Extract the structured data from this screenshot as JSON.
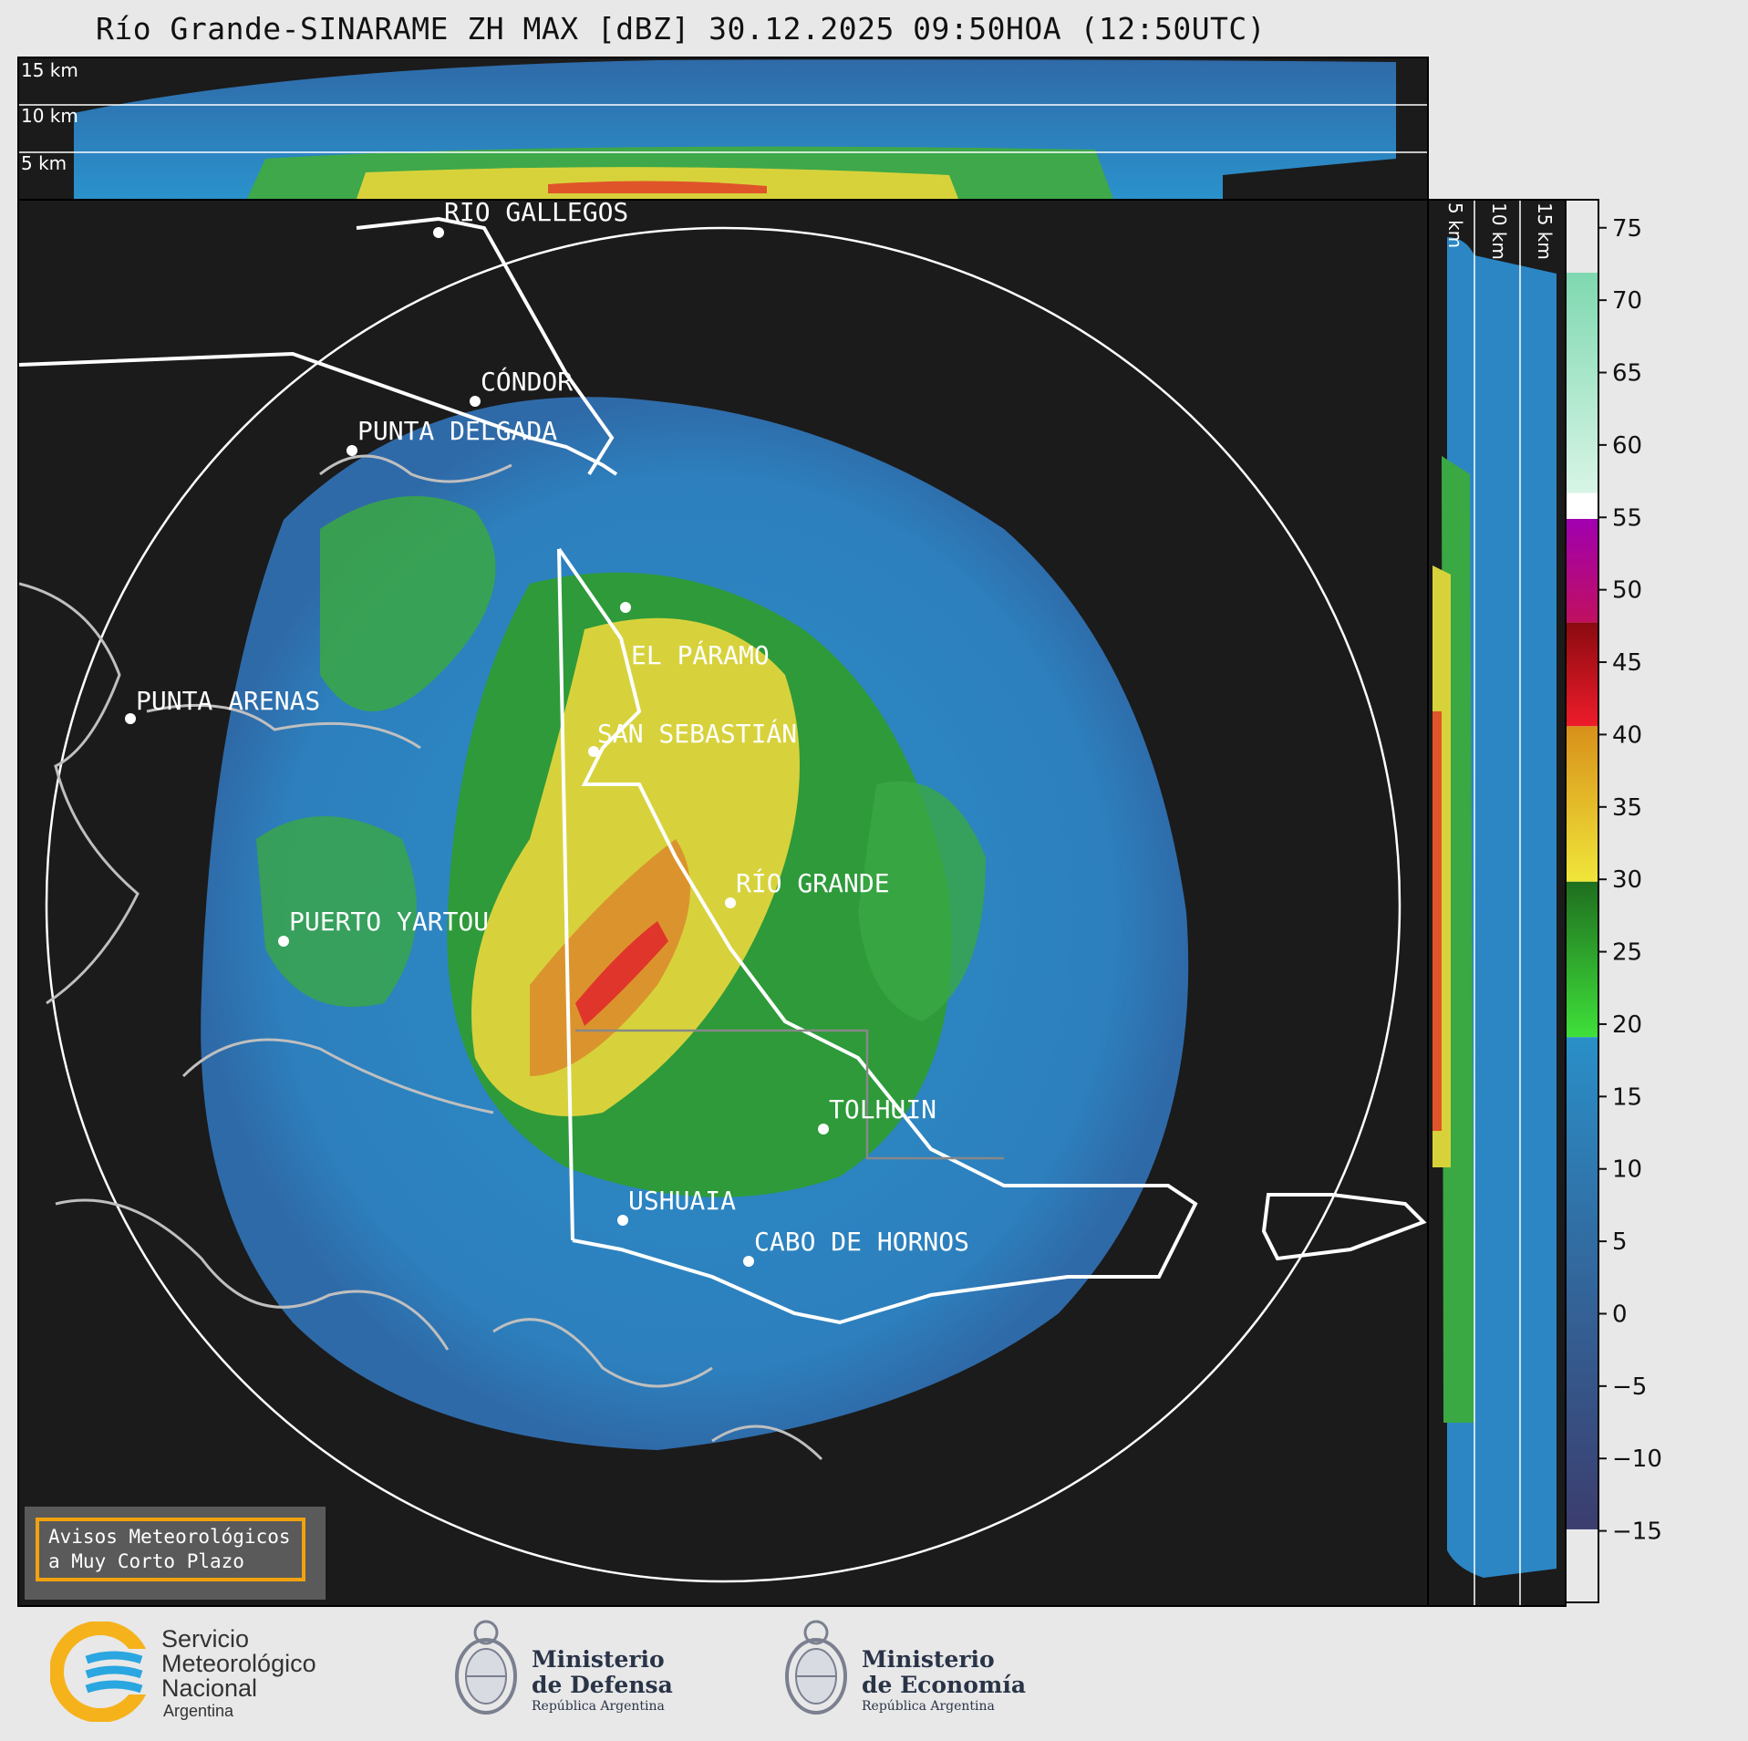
{
  "title": "Río Grande-SINARAME ZH MAX [dBZ] 30.12.2025 09:50HOA (12:50UTC)",
  "altitude_labels": {
    "top": [
      "15 km",
      "10 km",
      "5 km"
    ],
    "side": [
      "5 km",
      "10 km",
      "15 km"
    ]
  },
  "cities": [
    {
      "name": "RÍO GALLEGOS"
    },
    {
      "name": "CÓNDOR"
    },
    {
      "name": "PUNTA DELGADA"
    },
    {
      "name": "EL PÁRAMO"
    },
    {
      "name": "PUNTA ARENAS"
    },
    {
      "name": "SAN SEBASTIÁN"
    },
    {
      "name": "RÍO GRANDE"
    },
    {
      "name": "PUERTO YARTOU"
    },
    {
      "name": "TOLHUIN"
    },
    {
      "name": "USHUAIA"
    },
    {
      "name": "CABO DE HORNOS"
    }
  ],
  "colorbar": {
    "unit": "dBZ",
    "min": -20,
    "max": 77,
    "ticks": [
      "75",
      "70",
      "65",
      "60",
      "55",
      "50",
      "45",
      "40",
      "35",
      "30",
      "25",
      "20",
      "15",
      "10",
      "5",
      "0",
      "−5",
      "−10",
      "−15"
    ],
    "tick_values": [
      75,
      70,
      65,
      60,
      55,
      50,
      45,
      40,
      35,
      30,
      25,
      20,
      15,
      10,
      5,
      0,
      -5,
      -10,
      -15
    ],
    "bands": [
      {
        "from": -20,
        "to": 18,
        "color_low": "#3b3d6e",
        "color_high": "#2a8fc8"
      },
      {
        "from": 18,
        "to": 30,
        "color_low": "#3fe03a",
        "color_high": "#1f6e1f"
      },
      {
        "from": 30,
        "to": 42,
        "color_low": "#f0e63a",
        "color_high": "#d8901a"
      },
      {
        "from": 42,
        "to": 50,
        "color_low": "#ee1c2a",
        "color_high": "#8a0a10"
      },
      {
        "from": 50,
        "to": 58,
        "color_low": "#c01060",
        "color_high": "#a000b0"
      },
      {
        "from": 58,
        "to": 60,
        "color_low": "#ffffff",
        "color_high": "#ffffff"
      },
      {
        "from": 60,
        "to": 77,
        "color_low": "#d8f5e6",
        "color_high": "#7ed8b0"
      }
    ]
  },
  "warning_box": {
    "line1": "Avisos Meteorológicos",
    "line2": "a Muy Corto Plazo"
  },
  "logos": {
    "smn": {
      "line1": "Servicio",
      "line2": "Meteorológico",
      "line3": "Nacional",
      "line4": "Argentina"
    },
    "defensa": {
      "line1": "Ministerio",
      "line2": "de Defensa",
      "line3": "República Argentina"
    },
    "economia": {
      "line1": "Ministerio",
      "line2": "de Economía",
      "line3": "República Argentina"
    }
  },
  "colors": {
    "panel_bg": "#1b1b1b",
    "accent_orange": "#f2a20f",
    "smn_blue": "#2aa6e0",
    "smn_yellow": "#f6b21b"
  }
}
